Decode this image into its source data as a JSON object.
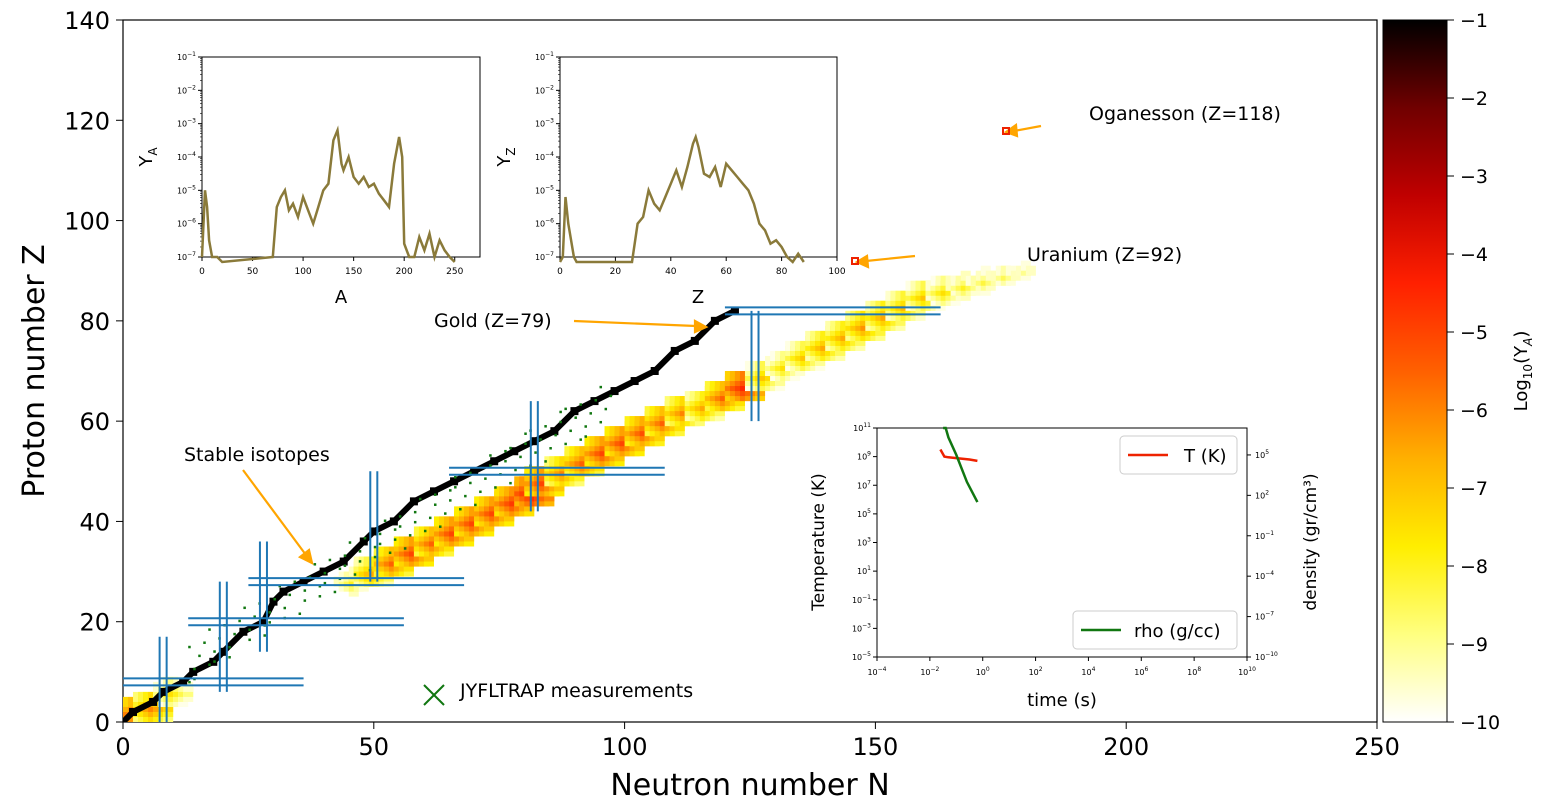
{
  "chart_data": [
    {
      "type": "heatmap",
      "name": "main-nuclide-chart",
      "title": "",
      "xlabel": "Neutron number N",
      "ylabel": "Proton number Z",
      "xlim": [
        0,
        250
      ],
      "ylim": [
        0,
        140
      ],
      "x_ticks": [
        0,
        50,
        100,
        150,
        200,
        250
      ],
      "y_ticks": [
        0,
        20,
        40,
        60,
        80,
        100,
        120,
        140
      ],
      "colorbar": {
        "label": "Log₁₀(Y_A)",
        "label_main": "Log",
        "label_sub": "10",
        "label_paren": "(Y",
        "label_sub2": "A",
        "label_close": ")",
        "range": [
          -10,
          -1
        ],
        "ticks": [
          -1,
          -2,
          -3,
          -4,
          -5,
          -6,
          -7,
          -8,
          -9,
          -10
        ],
        "tick_labels": [
          "−1",
          "−2",
          "−3",
          "−4",
          "−5",
          "−6",
          "−7",
          "−8",
          "−9",
          "−10"
        ],
        "colormap": [
          "#ffffff",
          "#ffff80",
          "#ffee00",
          "#ffb000",
          "#ff6000",
          "#ff2000",
          "#c00000",
          "#700000",
          "#000000"
        ]
      },
      "yield_band": [
        {
          "N": 2,
          "Z": 2,
          "log": -5.5
        },
        {
          "N": 6,
          "Z": 3,
          "log": -6
        },
        {
          "N": 10,
          "Z": 6,
          "log": -7.5
        },
        {
          "N": 46,
          "Z": 28,
          "log": -8
        },
        {
          "N": 50,
          "Z": 30,
          "log": -6.5
        },
        {
          "N": 54,
          "Z": 32,
          "log": -5.5
        },
        {
          "N": 58,
          "Z": 34,
          "log": -5
        },
        {
          "N": 62,
          "Z": 36,
          "log": -5.5
        },
        {
          "N": 66,
          "Z": 38,
          "log": -5
        },
        {
          "N": 70,
          "Z": 40,
          "log": -5
        },
        {
          "N": 74,
          "Z": 42,
          "log": -5
        },
        {
          "N": 78,
          "Z": 44,
          "log": -4.8
        },
        {
          "N": 82,
          "Z": 46,
          "log": -4
        },
        {
          "N": 84,
          "Z": 48,
          "log": -5
        },
        {
          "N": 88,
          "Z": 50,
          "log": -6
        },
        {
          "N": 92,
          "Z": 52,
          "log": -5.5
        },
        {
          "N": 96,
          "Z": 54,
          "log": -5
        },
        {
          "N": 100,
          "Z": 56,
          "log": -5
        },
        {
          "N": 104,
          "Z": 58,
          "log": -5.2
        },
        {
          "N": 108,
          "Z": 60,
          "log": -5.5
        },
        {
          "N": 112,
          "Z": 62,
          "log": -6
        },
        {
          "N": 116,
          "Z": 63,
          "log": -6.5
        },
        {
          "N": 120,
          "Z": 65,
          "log": -5.5
        },
        {
          "N": 124,
          "Z": 67,
          "log": -4.5
        },
        {
          "N": 128,
          "Z": 69,
          "log": -7
        },
        {
          "N": 132,
          "Z": 71,
          "log": -7.5
        },
        {
          "N": 136,
          "Z": 73,
          "log": -7
        },
        {
          "N": 140,
          "Z": 75,
          "log": -6.5
        },
        {
          "N": 144,
          "Z": 77,
          "log": -6.5
        },
        {
          "N": 148,
          "Z": 79,
          "log": -6.2
        },
        {
          "N": 152,
          "Z": 81,
          "log": -6.5
        },
        {
          "N": 156,
          "Z": 83,
          "log": -6.8
        },
        {
          "N": 160,
          "Z": 85,
          "log": -7
        },
        {
          "N": 164,
          "Z": 86,
          "log": -7.5
        },
        {
          "N": 168,
          "Z": 87,
          "log": -8
        },
        {
          "N": 172,
          "Z": 88,
          "log": -8.3
        },
        {
          "N": 176,
          "Z": 89,
          "log": -8.5
        },
        {
          "N": 180,
          "Z": 90,
          "log": -9
        }
      ],
      "stable_line": [
        [
          0,
          0
        ],
        [
          2,
          2
        ],
        [
          6,
          4
        ],
        [
          8,
          6
        ],
        [
          12,
          8
        ],
        [
          14,
          10
        ],
        [
          18,
          12
        ],
        [
          20,
          14
        ],
        [
          24,
          18
        ],
        [
          28,
          20
        ],
        [
          30,
          24
        ],
        [
          32,
          26
        ],
        [
          36,
          28
        ],
        [
          40,
          30
        ],
        [
          44,
          32
        ],
        [
          48,
          36
        ],
        [
          50,
          38
        ],
        [
          54,
          40
        ],
        [
          58,
          44
        ],
        [
          62,
          46
        ],
        [
          66,
          48
        ],
        [
          70,
          50
        ],
        [
          74,
          52
        ],
        [
          78,
          54
        ],
        [
          82,
          56
        ],
        [
          86,
          58
        ],
        [
          90,
          62
        ],
        [
          94,
          64
        ],
        [
          98,
          66
        ],
        [
          102,
          68
        ],
        [
          106,
          70
        ],
        [
          110,
          74
        ],
        [
          114,
          76
        ],
        [
          118,
          80
        ],
        [
          122,
          82
        ]
      ],
      "magic_N": [
        8,
        20,
        28,
        50,
        82,
        126
      ],
      "magic_Z": [
        8,
        20,
        28,
        50,
        82
      ],
      "annotations": [
        {
          "text": "Oganesson (Z=118)",
          "N": 176,
          "Z": 118
        },
        {
          "text": "Uranium (Z=92)",
          "N": 146,
          "Z": 92
        },
        {
          "text": "Gold (Z=79)",
          "N": 118,
          "Z": 79
        },
        {
          "text": "Stable isotopes",
          "N": 38,
          "Z": 32
        }
      ],
      "legend": "JYFLTRAP measurements"
    },
    {
      "type": "line",
      "name": "inset-YA",
      "xlabel": "A",
      "ylabel": "Y_A",
      "xlim": [
        0,
        275
      ],
      "x_ticks": [
        0,
        50,
        100,
        150,
        200,
        250
      ],
      "ylim_exp": [
        -7,
        -1
      ],
      "y_tick_exps": [
        -7,
        -6,
        -5,
        -4,
        -3,
        -2,
        -1
      ],
      "series": [
        {
          "name": "YA",
          "color": "#8a7a3a",
          "x": [
            0,
            3,
            5,
            7,
            10,
            15,
            20,
            70,
            74,
            78,
            82,
            86,
            90,
            95,
            100,
            105,
            110,
            115,
            120,
            125,
            130,
            134,
            138,
            140,
            145,
            150,
            155,
            160,
            165,
            170,
            175,
            180,
            185,
            190,
            195,
            198,
            200,
            205,
            210,
            215,
            220,
            225,
            230,
            235,
            240,
            245,
            250
          ],
          "logy": [
            -7,
            -5,
            -5.5,
            -6.5,
            -7,
            -7,
            -7.5,
            -7,
            -5.5,
            -5.2,
            -5.0,
            -5.6,
            -5.4,
            -5.8,
            -5.2,
            -5.6,
            -6.0,
            -5.5,
            -5.0,
            -4.8,
            -3.5,
            -3.2,
            -4.2,
            -4.4,
            -4.0,
            -4.6,
            -4.8,
            -4.6,
            -4.9,
            -4.8,
            -5.1,
            -5.3,
            -5.5,
            -4.2,
            -3.4,
            -4.0,
            -6.6,
            -7.0,
            -7.0,
            -6.4,
            -6.8,
            -6.3,
            -7.0,
            -6.5,
            -6.8,
            -7.0,
            -7.2
          ]
        }
      ]
    },
    {
      "type": "line",
      "name": "inset-YZ",
      "xlabel": "Z",
      "ylabel": "Y_Z",
      "xlim": [
        0,
        100
      ],
      "x_ticks": [
        0,
        20,
        40,
        60,
        80,
        100
      ],
      "ylim_exp": [
        -7,
        -1
      ],
      "y_tick_exps": [
        -7,
        -6,
        -5,
        -4,
        -3,
        -2,
        -1
      ],
      "series": [
        {
          "name": "YZ",
          "color": "#8a7a3a",
          "x": [
            0,
            1,
            2,
            3,
            5,
            6,
            7,
            26,
            28,
            30,
            32,
            34,
            36,
            38,
            40,
            42,
            44,
            46,
            48,
            49,
            50,
            52,
            54,
            56,
            58,
            60,
            62,
            64,
            66,
            68,
            70,
            72,
            74,
            76,
            78,
            80,
            82,
            84,
            86,
            88
          ],
          "logy": [
            -7.5,
            -7,
            -5.2,
            -6,
            -7,
            -7.5,
            -8,
            -7.2,
            -6,
            -5.8,
            -5.0,
            -5.4,
            -5.6,
            -5.2,
            -4.8,
            -4.4,
            -4.9,
            -4.3,
            -3.6,
            -3.4,
            -3.7,
            -4.5,
            -4.6,
            -4.3,
            -4.9,
            -4.2,
            -4.4,
            -4.6,
            -4.8,
            -5.0,
            -5.4,
            -6.0,
            -6.2,
            -6.6,
            -6.5,
            -6.7,
            -7.0,
            -7.2,
            -6.9,
            -7.4
          ]
        }
      ]
    },
    {
      "type": "line",
      "name": "inset-thermo",
      "xlabel": "time (s)",
      "ylabel_left": "Temperature (K)",
      "ylabel_right": "density (gr/cm³)",
      "x_tick_exps": [
        -4,
        -2,
        0,
        2,
        4,
        6,
        8,
        10
      ],
      "left_tick_exps": [
        -5,
        -3,
        -1,
        1,
        3,
        5,
        7,
        9,
        11
      ],
      "right_tick_exps": [
        -10,
        -7,
        -4,
        -1,
        2,
        5
      ],
      "series": [
        {
          "name": "T (K)",
          "color": "#ee2200",
          "logx": [
            -1.6,
            -1.45,
            -1.3,
            -1.0,
            -0.5,
            -0.2
          ],
          "logy": [
            9.5,
            9.0,
            8.95,
            8.9,
            8.8,
            8.7
          ]
        },
        {
          "name": "rho (g/cc)",
          "color": "#117711",
          "logx": [
            -1.5,
            -1.4,
            -1.3,
            -1.0,
            -0.6,
            -0.2
          ],
          "logy_right": [
            8.0,
            7.0,
            6.3,
            5.0,
            3.0,
            1.5
          ]
        }
      ],
      "legend": [
        "T (K)",
        "rho (g/cc)"
      ]
    }
  ]
}
